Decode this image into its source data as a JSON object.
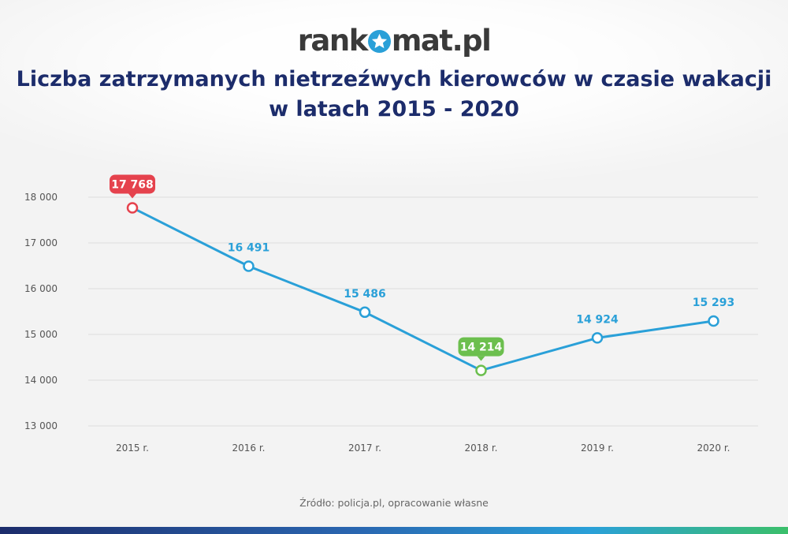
{
  "logo": {
    "text_before": "rank",
    "text_after": "mat.pl",
    "icon": "star-icon"
  },
  "title_lines": [
    "Liczba zatrzymanych nietrzeźwych kierowców w czasie wakacji",
    "w latach 2015 - 2020"
  ],
  "source": "Źródło: policja.pl, opracowanie własne",
  "colors": {
    "line": "#2aa0d8",
    "max": "#e5424d",
    "min": "#6cbf4e",
    "title": "#1c2c6b"
  },
  "chart_data": {
    "type": "line",
    "categories": [
      "2015 r.",
      "2016 r.",
      "2017 r.",
      "2018 r.",
      "2019 r.",
      "2020 r."
    ],
    "series": [
      {
        "values": [
          17768,
          16491,
          15486,
          14214,
          14924,
          15293
        ]
      }
    ],
    "value_labels": [
      "17 768",
      "16 491",
      "15 486",
      "14 214",
      "14 924",
      "15 293"
    ],
    "highlight": {
      "max_index": 0,
      "min_index": 3
    },
    "yticks": [
      13000,
      14000,
      15000,
      16000,
      17000,
      18000
    ],
    "ytick_labels": [
      "13 000",
      "14 000",
      "15 000",
      "16 000",
      "17 000",
      "18 000"
    ],
    "ylim": [
      13000,
      18000
    ],
    "grid": true
  }
}
